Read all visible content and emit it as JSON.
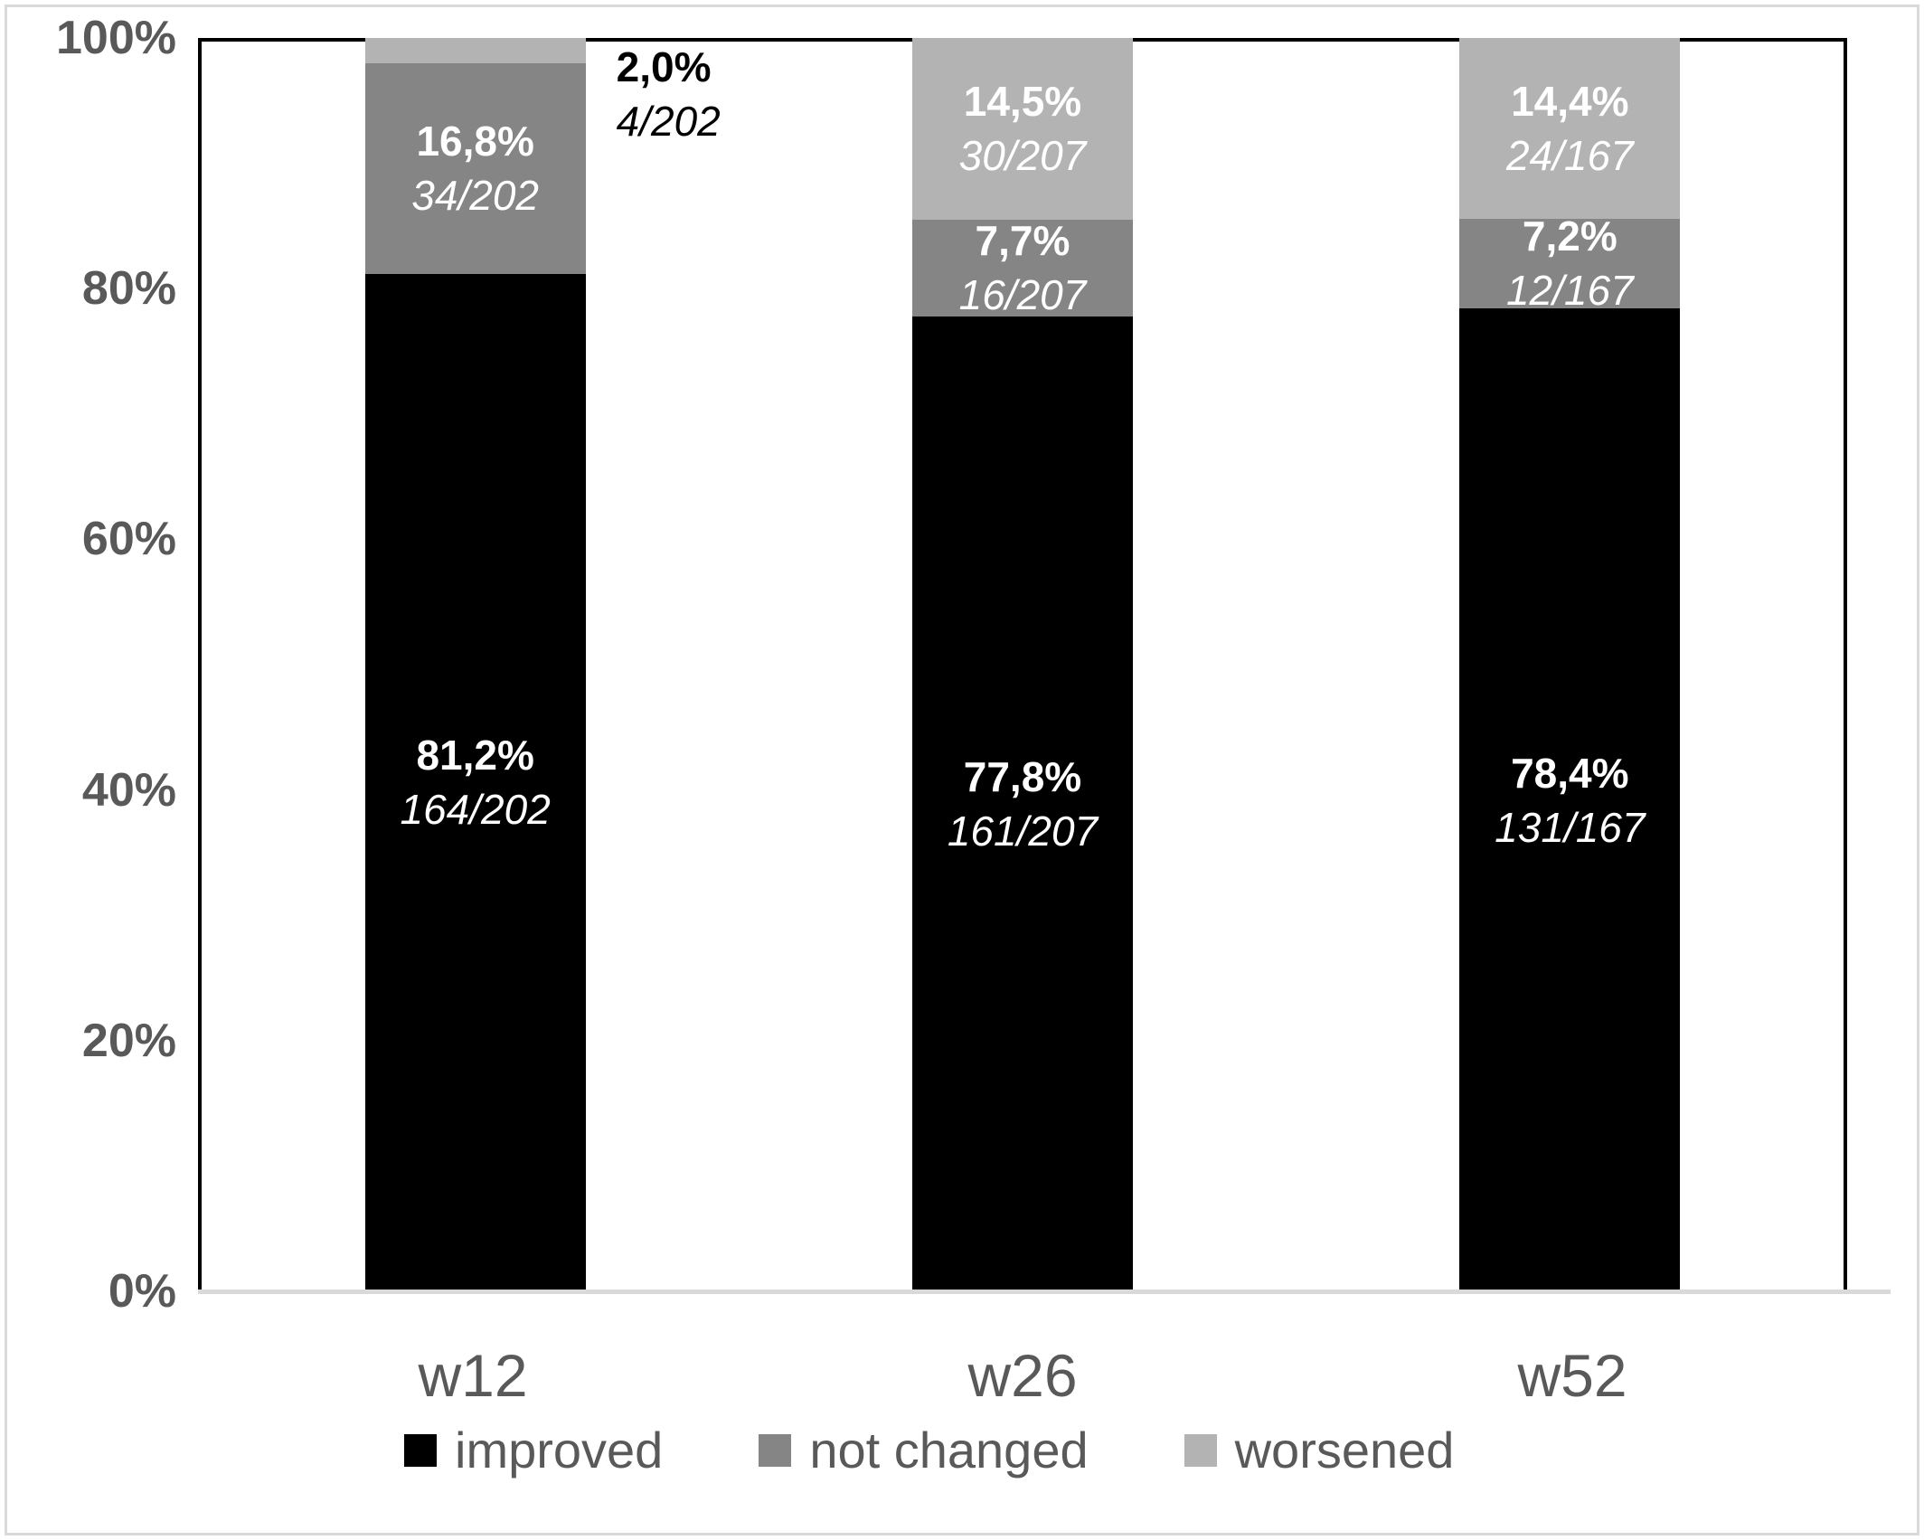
{
  "chart_data": {
    "type": "bar",
    "stacked": true,
    "units": "percent",
    "title": "",
    "xlabel": "",
    "ylabel": "",
    "ylim": [
      0,
      100
    ],
    "grid": false,
    "legend_position": "bottom",
    "y_ticks": [
      "100%",
      "80%",
      "60%",
      "40%",
      "20%",
      "0%"
    ],
    "categories": [
      "w12",
      "w26",
      "w52"
    ],
    "denominators": [
      202,
      207,
      167
    ],
    "series": [
      {
        "name": "improved",
        "color": "#000000",
        "values": [
          81.2,
          77.8,
          78.4
        ],
        "counts": [
          164,
          161,
          131
        ],
        "labels_pct": [
          "81,2%",
          "77,8%",
          "78,4%"
        ],
        "labels_frac": [
          "164/202",
          "161/207",
          "131/167"
        ]
      },
      {
        "name": "not changed",
        "color": "#858585",
        "values": [
          16.8,
          7.7,
          7.2
        ],
        "counts": [
          34,
          16,
          12
        ],
        "labels_pct": [
          "16,8%",
          "7,7%",
          "7,2%"
        ],
        "labels_frac": [
          "34/202",
          "16/207",
          "12/167"
        ]
      },
      {
        "name": "worsened",
        "color": "#b3b3b3",
        "values": [
          2.0,
          14.5,
          14.4
        ],
        "counts": [
          4,
          30,
          24
        ],
        "labels_pct": [
          "2,0%",
          "14,5%",
          "14,4%"
        ],
        "labels_frac": [
          "4/202",
          "30/207",
          "24/167"
        ]
      }
    ],
    "outside_label": {
      "series": "worsened",
      "category": "w12"
    }
  },
  "colors": {
    "axis_text": "#595959",
    "baseline": "#d9d9d9",
    "frame_border": "#d9d9d9",
    "label_on_bar": "#ffffff",
    "label_outside": "#000000"
  }
}
